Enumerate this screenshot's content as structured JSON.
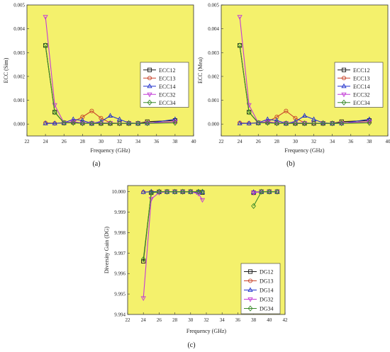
{
  "colors": {
    "plot_bg": "#f4f16c",
    "ECC12": "#1a1a1a",
    "ECC13": "#c8442a",
    "ECC14": "#2233cc",
    "ECC32": "#c23bd6",
    "ECC34": "#3a8a2a"
  },
  "chart_data": [
    {
      "panel": "a",
      "caption": "(a)",
      "type": "line",
      "xlabel": "Frequency (GHz)",
      "ylabel": "ECC (Sim)",
      "xlim": [
        22,
        40
      ],
      "ylim": [
        -0.0005,
        0.005
      ],
      "xticks": [
        22,
        24,
        26,
        28,
        30,
        32,
        34,
        36,
        38,
        40
      ],
      "yticks": [
        0.0,
        0.001,
        0.002,
        0.003,
        0.004,
        0.005
      ],
      "ytick_labels": [
        "0.000",
        "0.001",
        "0.002",
        "0.003",
        "0.004",
        "0.005"
      ],
      "legend_position": "right",
      "series": [
        {
          "name": "ECC12",
          "marker": "square",
          "x": [
            24,
            25,
            26,
            27,
            28,
            29,
            30,
            31,
            32,
            33,
            34,
            35,
            38
          ],
          "y": [
            0.0033,
            0.0005,
            5e-05,
            8e-05,
            5e-05,
            3e-05,
            3e-05,
            3e-05,
            3e-05,
            3e-05,
            3e-05,
            0.0001,
            0.00015
          ]
        },
        {
          "name": "ECC13",
          "marker": "circle",
          "x": [
            24,
            25,
            26,
            27,
            28,
            29,
            30,
            31,
            32,
            33,
            34,
            35,
            38
          ],
          "y": [
            5e-05,
            3e-05,
            5e-05,
            0.0001,
            0.0003,
            0.00055,
            0.00025,
            5e-05,
            3e-05,
            3e-05,
            3e-05,
            5e-05,
            0.0001
          ]
        },
        {
          "name": "ECC14",
          "marker": "triangle-up",
          "x": [
            24,
            25,
            26,
            27,
            28,
            29,
            30,
            31,
            32,
            33,
            34,
            35,
            38
          ],
          "y": [
            3e-05,
            3e-05,
            5e-05,
            0.0002,
            0.00015,
            3e-05,
            0.0001,
            0.00035,
            0.0002,
            5e-05,
            3e-05,
            3e-05,
            0.0002
          ]
        },
        {
          "name": "ECC32",
          "marker": "triangle-down",
          "x": [
            24,
            25,
            26,
            27,
            28,
            29,
            30,
            31,
            32,
            33,
            34,
            35,
            38
          ],
          "y": [
            0.0045,
            0.0008,
            5e-05,
            0.0001,
            5e-05,
            5e-05,
            5e-05,
            5e-05,
            3e-05,
            3e-05,
            3e-05,
            5e-05,
            0.0001
          ]
        },
        {
          "name": "ECC34",
          "marker": "diamond",
          "x": [
            24,
            25,
            26,
            27,
            28,
            29,
            30,
            31,
            32,
            33,
            34,
            35,
            38
          ],
          "y": [
            0.0033,
            0.0005,
            5e-05,
            5e-05,
            3e-05,
            3e-05,
            3e-05,
            3e-05,
            3e-05,
            3e-05,
            3e-05,
            3e-05,
            5e-05
          ]
        }
      ]
    },
    {
      "panel": "b",
      "caption": "(b)",
      "type": "line",
      "xlabel": "Frequency (GHz)",
      "ylabel": "ECC (Mea)",
      "xlim": [
        22,
        40
      ],
      "ylim": [
        -0.0005,
        0.005
      ],
      "xticks": [
        22,
        24,
        26,
        28,
        30,
        32,
        34,
        36,
        38,
        40
      ],
      "yticks": [
        0.0,
        0.001,
        0.002,
        0.003,
        0.004,
        0.005
      ],
      "ytick_labels": [
        "0.000",
        "0.001",
        "0.002",
        "0.003",
        "0.004",
        "0.005"
      ],
      "legend_position": "right",
      "series": [
        {
          "name": "ECC12",
          "marker": "square",
          "x": [
            24,
            25,
            26,
            27,
            28,
            29,
            30,
            31,
            32,
            33,
            34,
            35,
            38
          ],
          "y": [
            0.0033,
            0.0005,
            5e-05,
            8e-05,
            5e-05,
            3e-05,
            3e-05,
            3e-05,
            3e-05,
            3e-05,
            3e-05,
            0.0001,
            0.00015
          ]
        },
        {
          "name": "ECC13",
          "marker": "circle",
          "x": [
            24,
            25,
            26,
            27,
            28,
            29,
            30,
            31,
            32,
            33,
            34,
            35,
            38
          ],
          "y": [
            5e-05,
            3e-05,
            5e-05,
            0.0001,
            0.0003,
            0.00055,
            0.00025,
            5e-05,
            3e-05,
            3e-05,
            3e-05,
            5e-05,
            0.0001
          ]
        },
        {
          "name": "ECC14",
          "marker": "triangle-up",
          "x": [
            24,
            25,
            26,
            27,
            28,
            29,
            30,
            31,
            32,
            33,
            34,
            35,
            38
          ],
          "y": [
            3e-05,
            3e-05,
            5e-05,
            0.0002,
            0.00015,
            3e-05,
            0.0001,
            0.00035,
            0.0002,
            5e-05,
            3e-05,
            3e-05,
            0.0002
          ]
        },
        {
          "name": "ECC32",
          "marker": "triangle-down",
          "x": [
            24,
            25,
            26,
            27,
            28,
            29,
            30,
            31,
            32,
            33,
            34,
            35,
            38
          ],
          "y": [
            0.0045,
            0.0008,
            5e-05,
            0.0001,
            5e-05,
            5e-05,
            5e-05,
            5e-05,
            3e-05,
            3e-05,
            3e-05,
            5e-05,
            0.0001
          ]
        },
        {
          "name": "ECC34",
          "marker": "diamond",
          "x": [
            24,
            25,
            26,
            27,
            28,
            29,
            30,
            31,
            32,
            33,
            34,
            35,
            38
          ],
          "y": [
            0.0033,
            0.0005,
            5e-05,
            5e-05,
            3e-05,
            3e-05,
            3e-05,
            3e-05,
            3e-05,
            3e-05,
            3e-05,
            3e-05,
            5e-05
          ]
        }
      ]
    },
    {
      "panel": "c",
      "caption": "(c)",
      "type": "line",
      "xlabel": "Frequency (GHz)",
      "ylabel": "Diversity Gain (DG)",
      "xlim": [
        22,
        42
      ],
      "ylim": [
        9.994,
        10.0003
      ],
      "xticks": [
        22,
        24,
        26,
        28,
        30,
        32,
        34,
        36,
        38,
        40,
        42
      ],
      "yticks": [
        9.994,
        9.995,
        9.996,
        9.997,
        9.998,
        9.999,
        10.0
      ],
      "ytick_labels": [
        "9.994",
        "9.995",
        "9.996",
        "9.997",
        "9.998",
        "9.999",
        "10.000"
      ],
      "legend_position": "bottom-right",
      "series": [
        {
          "name": "DG12",
          "marker": "square",
          "x": [
            24,
            25,
            26,
            27,
            28,
            29,
            30,
            31,
            31.5,
            38,
            39,
            40,
            41
          ],
          "y": [
            9.9966,
            9.99995,
            9.99999,
            10.0,
            10.0,
            10.0,
            10.0,
            9.99998,
            9.99996,
            9.99995,
            10.0,
            10.0,
            10.0
          ]
        },
        {
          "name": "DG13",
          "marker": "circle",
          "x": [
            24,
            25,
            26,
            27,
            28,
            29,
            30,
            31,
            31.5,
            38,
            39,
            40,
            41
          ],
          "y": [
            9.99998,
            9.99999,
            10.0,
            10.0,
            10.0,
            9.99998,
            9.99999,
            10.0,
            9.99999,
            9.99997,
            10.0,
            10.0,
            10.0
          ]
        },
        {
          "name": "DG14",
          "marker": "triangle-up",
          "x": [
            24,
            25,
            26,
            27,
            28,
            29,
            30,
            31,
            31.5,
            38,
            39,
            40,
            41
          ],
          "y": [
            9.99998,
            10.0,
            10.0,
            9.99999,
            9.99999,
            10.0,
            9.99999,
            9.99996,
            9.99998,
            9.99998,
            10.0,
            10.0,
            10.0
          ]
        },
        {
          "name": "DG32",
          "marker": "triangle-down",
          "x": [
            24,
            25,
            26,
            27,
            28,
            29,
            30,
            31,
            31.5,
            38,
            39,
            40,
            41
          ],
          "y": [
            9.9948,
            9.99965,
            9.99995,
            10.0,
            10.0,
            10.0,
            10.0,
            9.9999,
            9.9996,
            9.99995,
            10.0,
            10.0,
            10.0
          ]
        },
        {
          "name": "DG34",
          "marker": "diamond",
          "x": [
            24,
            25,
            26,
            27,
            28,
            29,
            30,
            31,
            31.5,
            38,
            39,
            40,
            41
          ],
          "y": [
            9.9967,
            9.99995,
            10.0,
            10.0,
            10.0,
            10.0,
            10.0,
            10.0,
            10.0,
            9.9993,
            10.0,
            10.0,
            10.0
          ]
        }
      ]
    }
  ]
}
